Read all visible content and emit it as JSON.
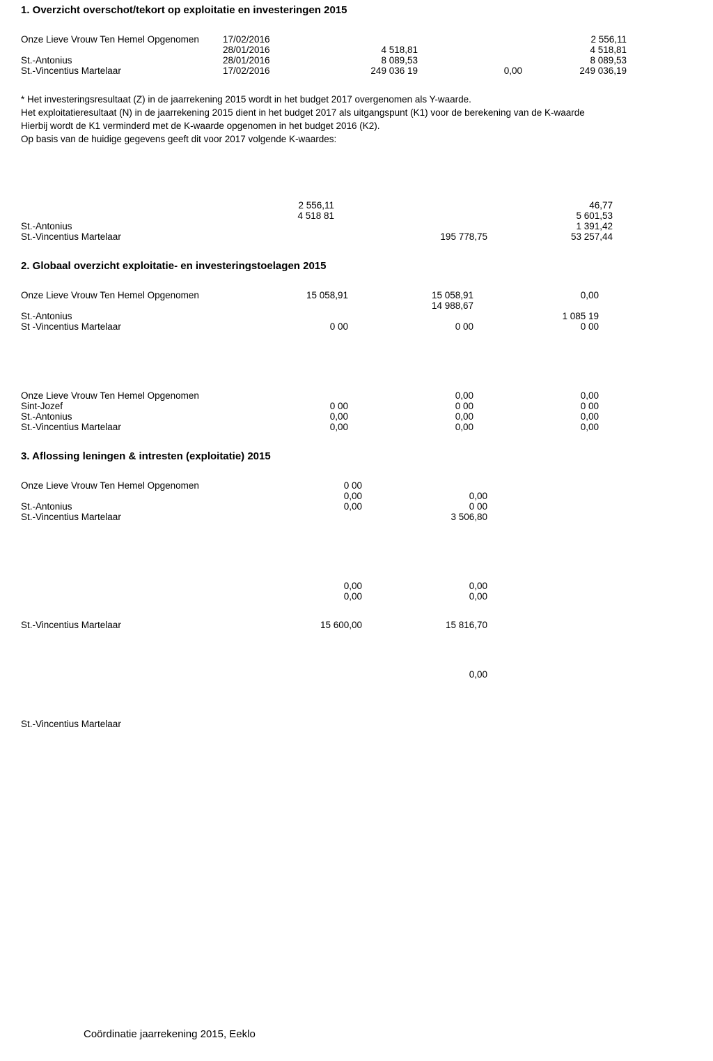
{
  "section1": {
    "title": "1. Overzicht overschot/tekort op exploitatie en investeringen 2015",
    "rows": [
      {
        "label": "Onze Lieve Vrouw Ten Hemel Opgenomen",
        "c1": "17/02/2016",
        "c2": "",
        "c3": "",
        "c4": "2 556,11"
      },
      {
        "label": "",
        "c1": "28/01/2016",
        "c2": "4 518,81",
        "c3": "",
        "c4": "4 518,81"
      },
      {
        "label": "St.-Antonius",
        "c1": "28/01/2016",
        "c2": "8 089,53",
        "c3": "",
        "c4": "8 089,53"
      },
      {
        "label": "St.-Vincentius Martelaar",
        "c1": "17/02/2016",
        "c2": "249 036 19",
        "c3": "0,00",
        "c4": "249 036,19"
      }
    ],
    "notes": [
      "* Het investeringsresultaat (Z) in de jaarrekening 2015 wordt in het budget 2017 overgenomen als Y-waarde.",
      "Het exploitatieresultaat (N) in de jaarrekening 2015 dient in het budget 2017 als uitgangspunt (K1) voor de berekening van de K-waarde",
      "Hierbij wordt de K1 verminderd met de K-waarde opgenomen in het budget 2016 (K2).",
      "Op basis van de huidige gegevens geeft dit voor 2017 volgende K-waardes:"
    ],
    "kvalues": {
      "rows": [
        {
          "label": "",
          "kc1": "2 556,11",
          "kc2": "",
          "kc3": "46,77"
        },
        {
          "label": "",
          "kc1": "4 518 81",
          "kc2": "",
          "kc3": "5 601,53"
        },
        {
          "label": "St.-Antonius",
          "kc1": "",
          "kc2": "",
          "kc3": "1 391,42"
        },
        {
          "label": "St.-Vincentius Martelaar",
          "kc1": "",
          "kc2": "195 778,75",
          "kc3": "53 257,44"
        }
      ]
    }
  },
  "section2": {
    "title": "2. Globaal overzicht exploitatie- en investeringstoelagen 2015",
    "exploit": {
      "rows": [
        {
          "label": "Onze Lieve Vrouw Ten Hemel Opgenomen",
          "sc1": "15 058,91",
          "sc2": "15 058,91",
          "sc3": "0,00"
        },
        {
          "label": "",
          "sc1": "",
          "sc2": "14 988,67",
          "sc3": ""
        },
        {
          "label": "St.-Antonius",
          "sc1": "",
          "sc2": "",
          "sc3": "1 085 19"
        },
        {
          "label": "St -Vincentius Martelaar",
          "sc1": "0 00",
          "sc2": "0 00",
          "sc3": "0 00"
        }
      ]
    },
    "invest": {
      "rows": [
        {
          "label": "Onze Lieve Vrouw Ten Hemel Opgenomen",
          "sb1": "",
          "sb2": "0,00",
          "sb3": "0,00"
        },
        {
          "label": "Sint-Jozef",
          "sb1": "0 00",
          "sb2": "0 00",
          "sb3": "0 00"
        },
        {
          "label": "St.-Antonius",
          "sb1": "0,00",
          "sb2": "0,00",
          "sb3": "0,00"
        },
        {
          "label": "St.-Vincentius Martelaar",
          "sb1": "0,00",
          "sb2": "0,00",
          "sb3": "0,00"
        }
      ]
    }
  },
  "section3": {
    "title": "3. Aflossing leningen & intresten (exploitatie) 2015",
    "blockA": {
      "rows": [
        {
          "label": "Onze Lieve Vrouw Ten Hemel Opgenomen",
          "t1": "0 00",
          "t2": ""
        },
        {
          "label": "",
          "t1": "0,00",
          "t2": "0,00"
        },
        {
          "label": "St.-Antonius",
          "t1": "0,00",
          "t2": "0 00"
        },
        {
          "label": "St.-Vincentius Martelaar",
          "t1": "",
          "t2": "3 506,80"
        }
      ]
    },
    "blockB": {
      "rows": [
        {
          "label": "",
          "t1": "0,00",
          "t2": "0,00"
        },
        {
          "label": "",
          "t1": "0,00",
          "t2": "0,00"
        }
      ]
    },
    "blockC": {
      "rows": [
        {
          "label": "St.-Vincentius Martelaar",
          "t1": "15 600,00",
          "t2": "15 816,70"
        }
      ]
    },
    "blockD": {
      "rows": [
        {
          "label": "",
          "t1": "",
          "t2": "0,00"
        }
      ]
    },
    "blockE": {
      "rows": [
        {
          "label": "St.-Vincentius Martelaar",
          "t1": "",
          "t2": ""
        }
      ]
    }
  },
  "footer": "Coördinatie jaarrekening 2015, Eeklo"
}
